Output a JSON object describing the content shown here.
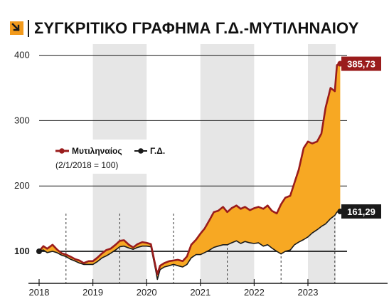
{
  "title": "ΣΥΓΚΡΙΤΙΚΟ ΓΡΑΦΗΜΑ Γ.Δ.-ΜΥΤΙΛΗΝΑΙΟΥ",
  "icon": "arrow-down-right-icon",
  "colors": {
    "mytilineos": "#9a1c1c",
    "gd": "#1a1a1a",
    "fill": "#f7a823",
    "shade": "#e6e6e6",
    "icon": "#f29a1c"
  },
  "chart_data": {
    "type": "line",
    "x_ticks": [
      "2018",
      "2019",
      "2020",
      "2021",
      "2022",
      "2023"
    ],
    "y_ticks": [
      "100",
      "200",
      "300",
      "400"
    ],
    "ylim": [
      50,
      420
    ],
    "shaded_years": [
      "2019",
      "2021",
      "2023"
    ],
    "legend": {
      "series_names": [
        "Μυτιληναίος",
        "Γ.Δ."
      ],
      "note": "(2/1/2018 = 100)"
    },
    "series": [
      {
        "name": "Μυτιληναίος",
        "end_label": "385,73",
        "points": [
          [
            2018.0,
            100
          ],
          [
            2018.08,
            108
          ],
          [
            2018.15,
            104
          ],
          [
            2018.25,
            110
          ],
          [
            2018.33,
            103
          ],
          [
            2018.42,
            97
          ],
          [
            2018.5,
            95
          ],
          [
            2018.58,
            92
          ],
          [
            2018.67,
            88
          ],
          [
            2018.75,
            86
          ],
          [
            2018.83,
            82
          ],
          [
            2018.92,
            85
          ],
          [
            2019.0,
            85
          ],
          [
            2019.08,
            90
          ],
          [
            2019.17,
            97
          ],
          [
            2019.25,
            102
          ],
          [
            2019.33,
            104
          ],
          [
            2019.42,
            110
          ],
          [
            2019.5,
            116
          ],
          [
            2019.58,
            117
          ],
          [
            2019.67,
            110
          ],
          [
            2019.75,
            106
          ],
          [
            2019.83,
            111
          ],
          [
            2019.92,
            114
          ],
          [
            2020.0,
            113
          ],
          [
            2020.08,
            111
          ],
          [
            2020.17,
            75
          ],
          [
            2020.2,
            65
          ],
          [
            2020.25,
            78
          ],
          [
            2020.33,
            82
          ],
          [
            2020.42,
            85
          ],
          [
            2020.5,
            86
          ],
          [
            2020.58,
            87
          ],
          [
            2020.67,
            85
          ],
          [
            2020.75,
            92
          ],
          [
            2020.83,
            110
          ],
          [
            2020.92,
            118
          ],
          [
            2021.0,
            127
          ],
          [
            2021.08,
            135
          ],
          [
            2021.17,
            148
          ],
          [
            2021.25,
            160
          ],
          [
            2021.33,
            162
          ],
          [
            2021.42,
            168
          ],
          [
            2021.5,
            160
          ],
          [
            2021.58,
            166
          ],
          [
            2021.67,
            170
          ],
          [
            2021.75,
            165
          ],
          [
            2021.83,
            168
          ],
          [
            2021.92,
            163
          ],
          [
            2022.0,
            166
          ],
          [
            2022.08,
            168
          ],
          [
            2022.17,
            165
          ],
          [
            2022.25,
            170
          ],
          [
            2022.33,
            162
          ],
          [
            2022.42,
            158
          ],
          [
            2022.5,
            172
          ],
          [
            2022.58,
            182
          ],
          [
            2022.67,
            185
          ],
          [
            2022.75,
            205
          ],
          [
            2022.83,
            225
          ],
          [
            2022.92,
            258
          ],
          [
            2023.0,
            268
          ],
          [
            2023.08,
            265
          ],
          [
            2023.17,
            268
          ],
          [
            2023.25,
            280
          ],
          [
            2023.33,
            320
          ],
          [
            2023.42,
            350
          ],
          [
            2023.5,
            345
          ],
          [
            2023.54,
            385
          ],
          [
            2023.6,
            387
          ]
        ]
      },
      {
        "name": "Γ.Δ.",
        "end_label": "161,29",
        "points": [
          [
            2018.0,
            100
          ],
          [
            2018.08,
            102
          ],
          [
            2018.15,
            98
          ],
          [
            2018.25,
            100
          ],
          [
            2018.33,
            98
          ],
          [
            2018.42,
            94
          ],
          [
            2018.5,
            92
          ],
          [
            2018.58,
            88
          ],
          [
            2018.67,
            85
          ],
          [
            2018.75,
            82
          ],
          [
            2018.83,
            80
          ],
          [
            2018.92,
            80
          ],
          [
            2019.0,
            80
          ],
          [
            2019.08,
            84
          ],
          [
            2019.17,
            90
          ],
          [
            2019.25,
            93
          ],
          [
            2019.33,
            97
          ],
          [
            2019.42,
            102
          ],
          [
            2019.5,
            107
          ],
          [
            2019.58,
            108
          ],
          [
            2019.67,
            105
          ],
          [
            2019.75,
            103
          ],
          [
            2019.83,
            106
          ],
          [
            2019.92,
            108
          ],
          [
            2020.0,
            108
          ],
          [
            2020.08,
            107
          ],
          [
            2020.17,
            70
          ],
          [
            2020.2,
            57
          ],
          [
            2020.25,
            72
          ],
          [
            2020.33,
            76
          ],
          [
            2020.42,
            78
          ],
          [
            2020.5,
            80
          ],
          [
            2020.58,
            78
          ],
          [
            2020.67,
            76
          ],
          [
            2020.75,
            80
          ],
          [
            2020.83,
            90
          ],
          [
            2020.92,
            95
          ],
          [
            2021.0,
            95
          ],
          [
            2021.08,
            98
          ],
          [
            2021.17,
            102
          ],
          [
            2021.25,
            106
          ],
          [
            2021.33,
            108
          ],
          [
            2021.42,
            110
          ],
          [
            2021.5,
            110
          ],
          [
            2021.58,
            113
          ],
          [
            2021.67,
            116
          ],
          [
            2021.75,
            112
          ],
          [
            2021.83,
            115
          ],
          [
            2021.92,
            113
          ],
          [
            2022.0,
            112
          ],
          [
            2022.08,
            113
          ],
          [
            2022.17,
            108
          ],
          [
            2022.25,
            110
          ],
          [
            2022.33,
            105
          ],
          [
            2022.42,
            100
          ],
          [
            2022.5,
            96
          ],
          [
            2022.58,
            100
          ],
          [
            2022.67,
            102
          ],
          [
            2022.75,
            110
          ],
          [
            2022.83,
            114
          ],
          [
            2022.92,
            118
          ],
          [
            2023.0,
            122
          ],
          [
            2023.08,
            128
          ],
          [
            2023.17,
            133
          ],
          [
            2023.25,
            138
          ],
          [
            2023.33,
            142
          ],
          [
            2023.42,
            150
          ],
          [
            2023.5,
            155
          ],
          [
            2023.54,
            160
          ],
          [
            2023.6,
            161
          ]
        ]
      }
    ]
  }
}
